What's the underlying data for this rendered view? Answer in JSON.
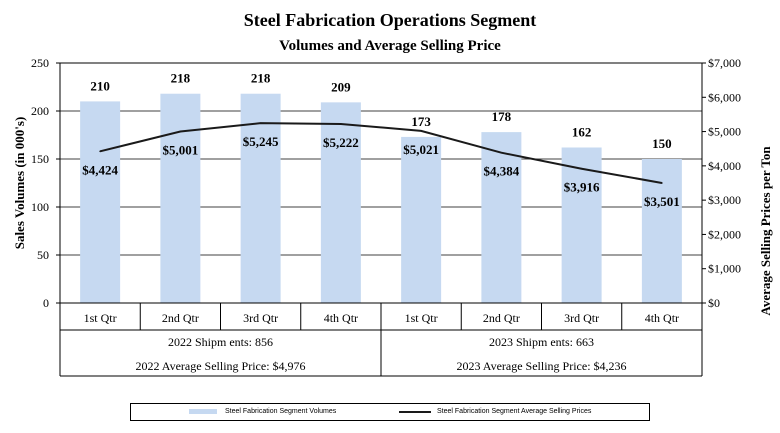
{
  "chart_data": {
    "type": "bar+line",
    "title": "Steel Fabrication  Operations Segment",
    "subtitle": "Volumes and Average Selling Price",
    "ylabel_left": "Sales Volumes (in 000's)",
    "ylabel_right": "Average Selling Prices per Ton",
    "ylim_left": [
      0,
      250
    ],
    "ylim_right": [
      0,
      7000
    ],
    "left_ticks": [
      0,
      50,
      100,
      150,
      200,
      250
    ],
    "left_tick_labels": [
      "0",
      "50",
      "100",
      "150",
      "200",
      "250"
    ],
    "right_ticks": [
      0,
      1000,
      2000,
      3000,
      4000,
      5000,
      6000,
      7000
    ],
    "right_tick_labels": [
      "$0",
      "$1,000",
      "$2,000",
      "$3,000",
      "$4,000",
      "$5,000",
      "$6,000",
      "$7,000"
    ],
    "categories": [
      "1st Qtr",
      "2nd Qtr",
      "3rd Qtr",
      "4th Qtr",
      "1st Qtr",
      "2nd Qtr",
      "3rd Qtr",
      "4th Qtr"
    ],
    "series": [
      {
        "name": "Steel Fabrication Segment Volumes",
        "type": "bar",
        "axis": "left",
        "color": "#c6d9f1",
        "values": [
          210,
          218,
          218,
          209,
          173,
          178,
          162,
          150
        ],
        "labels": [
          "210",
          "218",
          "218",
          "209",
          "173",
          "178",
          "162",
          "150"
        ]
      },
      {
        "name": "Steel Fabrication Segment Average Selling Prices",
        "type": "line",
        "axis": "right",
        "color": "#1a1a1a",
        "values": [
          4424,
          5001,
          5245,
          5222,
          5021,
          4384,
          3916,
          3501
        ],
        "labels": [
          "$4,424",
          "$5,001",
          "$5,245",
          "$5,222",
          "$5,021",
          "$4,384",
          "$3,916",
          "$3,501"
        ]
      }
    ],
    "groups": [
      {
        "shipments": "2022 Shipm ents: 856",
        "avg_price": "2022 Average Selling Price: $4,976"
      },
      {
        "shipments": "2023 Shipm ents: 663",
        "avg_price": "2023 Average Selling Price: $4,236"
      }
    ],
    "grid": true,
    "legend_position": "bottom"
  }
}
